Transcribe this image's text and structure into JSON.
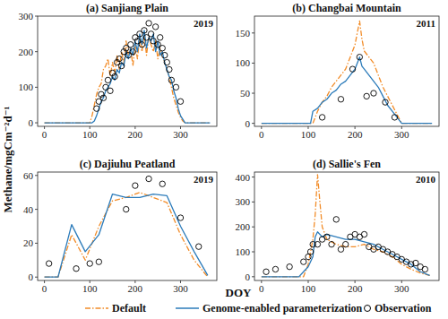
{
  "chart_data": [
    {
      "type": "line",
      "title": "(a) Sanjiang Plain",
      "annotation": "2019",
      "y_label": "Methane/mgCm⁻²d⁻¹",
      "x_label": "DOY",
      "xlim": [
        -15,
        380
      ],
      "xticks": [
        0,
        100,
        200,
        300
      ],
      "ylim": [
        -10,
        300
      ],
      "yticks": [
        0,
        100,
        200,
        300
      ],
      "grid": false,
      "legend": "bottom",
      "series": [
        {
          "name": "Default",
          "type": "line",
          "color": "#f28c28",
          "line_style": "dashdot",
          "x": [
            0,
            100,
            105,
            110,
            115,
            120,
            125,
            130,
            135,
            140,
            145,
            150,
            155,
            160,
            165,
            170,
            175,
            180,
            185,
            190,
            195,
            200,
            205,
            210,
            215,
            220,
            225,
            230,
            235,
            240,
            245,
            250,
            255,
            260,
            265,
            270,
            275,
            280,
            285,
            290,
            295,
            300,
            305,
            310,
            320,
            365
          ],
          "values": [
            0,
            0,
            20,
            50,
            80,
            100,
            110,
            150,
            160,
            180,
            130,
            170,
            140,
            190,
            150,
            200,
            170,
            230,
            190,
            210,
            160,
            220,
            180,
            240,
            200,
            250,
            190,
            240,
            220,
            200,
            230,
            180,
            210,
            190,
            170,
            150,
            130,
            100,
            70,
            50,
            30,
            15,
            5,
            0,
            0,
            0
          ]
        },
        {
          "name": "Genome-enabled parameterization",
          "type": "line",
          "color": "#2b7bba",
          "line_style": "solid",
          "x": [
            0,
            100,
            105,
            110,
            115,
            120,
            125,
            130,
            135,
            140,
            145,
            150,
            155,
            160,
            165,
            170,
            175,
            180,
            185,
            190,
            195,
            200,
            205,
            210,
            215,
            220,
            225,
            230,
            235,
            240,
            245,
            250,
            255,
            260,
            265,
            270,
            275,
            280,
            285,
            290,
            295,
            300,
            305,
            310,
            320,
            365
          ],
          "values": [
            0,
            0,
            0,
            5,
            20,
            40,
            60,
            70,
            90,
            100,
            110,
            130,
            120,
            150,
            140,
            170,
            160,
            200,
            180,
            210,
            190,
            230,
            200,
            250,
            220,
            260,
            210,
            240,
            230,
            250,
            200,
            230,
            190,
            200,
            170,
            150,
            130,
            120,
            90,
            70,
            40,
            20,
            10,
            0,
            0,
            0
          ]
        },
        {
          "name": "Observation",
          "type": "scatter",
          "color": "#000000",
          "marker": "circle",
          "x": [
            115,
            120,
            125,
            130,
            135,
            140,
            145,
            150,
            155,
            160,
            165,
            170,
            175,
            180,
            185,
            190,
            195,
            200,
            205,
            210,
            215,
            220,
            225,
            230,
            235,
            240,
            245,
            250,
            255,
            260,
            265,
            270,
            275,
            280,
            290,
            300
          ],
          "values": [
            40,
            60,
            80,
            70,
            100,
            120,
            90,
            140,
            130,
            170,
            180,
            160,
            200,
            210,
            190,
            220,
            200,
            240,
            230,
            250,
            220,
            260,
            240,
            280,
            250,
            230,
            270,
            220,
            240,
            210,
            190,
            170,
            150,
            120,
            100,
            60
          ]
        }
      ]
    },
    {
      "type": "line",
      "title": "(b) Changbai Mountain",
      "annotation": "2011",
      "xlim": [
        -15,
        380
      ],
      "xticks": [
        0,
        100,
        200,
        300
      ],
      "ylim": [
        -5,
        178
      ],
      "yticks": [
        0,
        50,
        100,
        150
      ],
      "grid": false,
      "series": [
        {
          "name": "Default",
          "type": "line",
          "color": "#f28c28",
          "line_style": "dashdot",
          "x": [
            0,
            110,
            120,
            130,
            140,
            150,
            160,
            170,
            180,
            190,
            200,
            205,
            210,
            215,
            220,
            230,
            240,
            250,
            260,
            270,
            280,
            290,
            300,
            365
          ],
          "values": [
            0,
            0,
            20,
            35,
            45,
            60,
            70,
            80,
            90,
            110,
            130,
            150,
            170,
            140,
            120,
            110,
            100,
            80,
            60,
            45,
            30,
            15,
            0,
            0
          ]
        },
        {
          "name": "Genome-enabled parameterization",
          "type": "line",
          "color": "#2b7bba",
          "line_style": "solid",
          "x": [
            0,
            105,
            110,
            120,
            130,
            140,
            150,
            160,
            170,
            180,
            190,
            200,
            205,
            210,
            215,
            220,
            230,
            240,
            250,
            260,
            270,
            280,
            290,
            300,
            365
          ],
          "values": [
            0,
            0,
            20,
            25,
            35,
            40,
            50,
            55,
            65,
            70,
            80,
            90,
            100,
            110,
            95,
            90,
            80,
            70,
            60,
            45,
            30,
            20,
            10,
            0,
            0
          ]
        },
        {
          "name": "Observation",
          "type": "scatter",
          "color": "#000000",
          "marker": "circle",
          "x": [
            130,
            170,
            195,
            210,
            225,
            240,
            265,
            285
          ],
          "values": [
            10,
            40,
            90,
            110,
            45,
            50,
            35,
            10
          ]
        }
      ]
    },
    {
      "type": "line",
      "title": "(c) Dajiuhu Peatland",
      "annotation": "2019",
      "xlim": [
        -15,
        380
      ],
      "xticks": [
        0,
        100,
        200,
        300
      ],
      "ylim": [
        -2,
        62
      ],
      "yticks": [
        0,
        20,
        40,
        60
      ],
      "grid": false,
      "series": [
        {
          "name": "Default",
          "type": "line",
          "color": "#f28c28",
          "line_style": "dashdot",
          "x": [
            0,
            30,
            60,
            90,
            120,
            150,
            180,
            210,
            240,
            270,
            300,
            330,
            360
          ],
          "values": [
            0,
            0,
            25,
            10,
            30,
            45,
            47,
            50,
            47,
            44,
            25,
            10,
            0
          ]
        },
        {
          "name": "Genome-enabled parameterization",
          "type": "line",
          "color": "#2b7bba",
          "line_style": "solid",
          "x": [
            0,
            30,
            60,
            90,
            120,
            150,
            180,
            210,
            240,
            270,
            300,
            330,
            360
          ],
          "values": [
            0,
            0,
            31,
            15,
            25,
            49,
            47,
            47,
            49,
            48,
            30,
            15,
            1
          ]
        },
        {
          "name": "Observation",
          "type": "scatter",
          "color": "#000000",
          "marker": "circle",
          "x": [
            10,
            70,
            100,
            120,
            180,
            200,
            230,
            260,
            300,
            340
          ],
          "values": [
            8,
            5,
            8,
            9,
            40,
            54,
            58,
            55,
            35,
            18
          ]
        }
      ]
    },
    {
      "type": "line",
      "title": "(d) Sallie's Fen",
      "annotation": "2010",
      "xlim": [
        -15,
        380
      ],
      "xticks": [
        0,
        100,
        200,
        300
      ],
      "ylim": [
        -15,
        420
      ],
      "yticks": [
        0,
        100,
        200,
        300,
        400
      ],
      "grid": false,
      "series": [
        {
          "name": "Default",
          "type": "line",
          "color": "#f28c28",
          "line_style": "dashdot",
          "x": [
            0,
            90,
            100,
            110,
            115,
            120,
            125,
            130,
            140,
            160,
            180,
            200,
            220,
            240,
            260,
            280,
            300,
            320,
            340,
            360
          ],
          "values": [
            0,
            0,
            50,
            150,
            250,
            410,
            300,
            200,
            150,
            130,
            120,
            120,
            130,
            110,
            100,
            80,
            50,
            30,
            15,
            5
          ]
        },
        {
          "name": "Genome-enabled parameterization",
          "type": "line",
          "color": "#2b7bba",
          "line_style": "solid",
          "x": [
            0,
            80,
            90,
            100,
            110,
            115,
            120,
            130,
            140,
            160,
            180,
            200,
            220,
            240,
            260,
            280,
            300,
            320,
            340,
            360
          ],
          "values": [
            0,
            0,
            20,
            40,
            80,
            160,
            180,
            160,
            170,
            160,
            150,
            150,
            140,
            130,
            110,
            90,
            70,
            50,
            20,
            5
          ]
        },
        {
          "name": "Observation",
          "type": "scatter",
          "color": "#000000",
          "marker": "circle",
          "x": [
            10,
            30,
            60,
            90,
            100,
            105,
            110,
            120,
            130,
            140,
            150,
            160,
            170,
            180,
            190,
            200,
            210,
            220,
            230,
            240,
            250,
            260,
            270,
            280,
            290,
            300,
            310,
            320,
            330,
            340,
            350
          ],
          "values": [
            20,
            30,
            40,
            60,
            80,
            100,
            130,
            130,
            150,
            160,
            130,
            230,
            110,
            130,
            160,
            170,
            160,
            170,
            120,
            110,
            120,
            110,
            100,
            90,
            80,
            70,
            60,
            50,
            55,
            40,
            30
          ]
        }
      ]
    }
  ]
}
